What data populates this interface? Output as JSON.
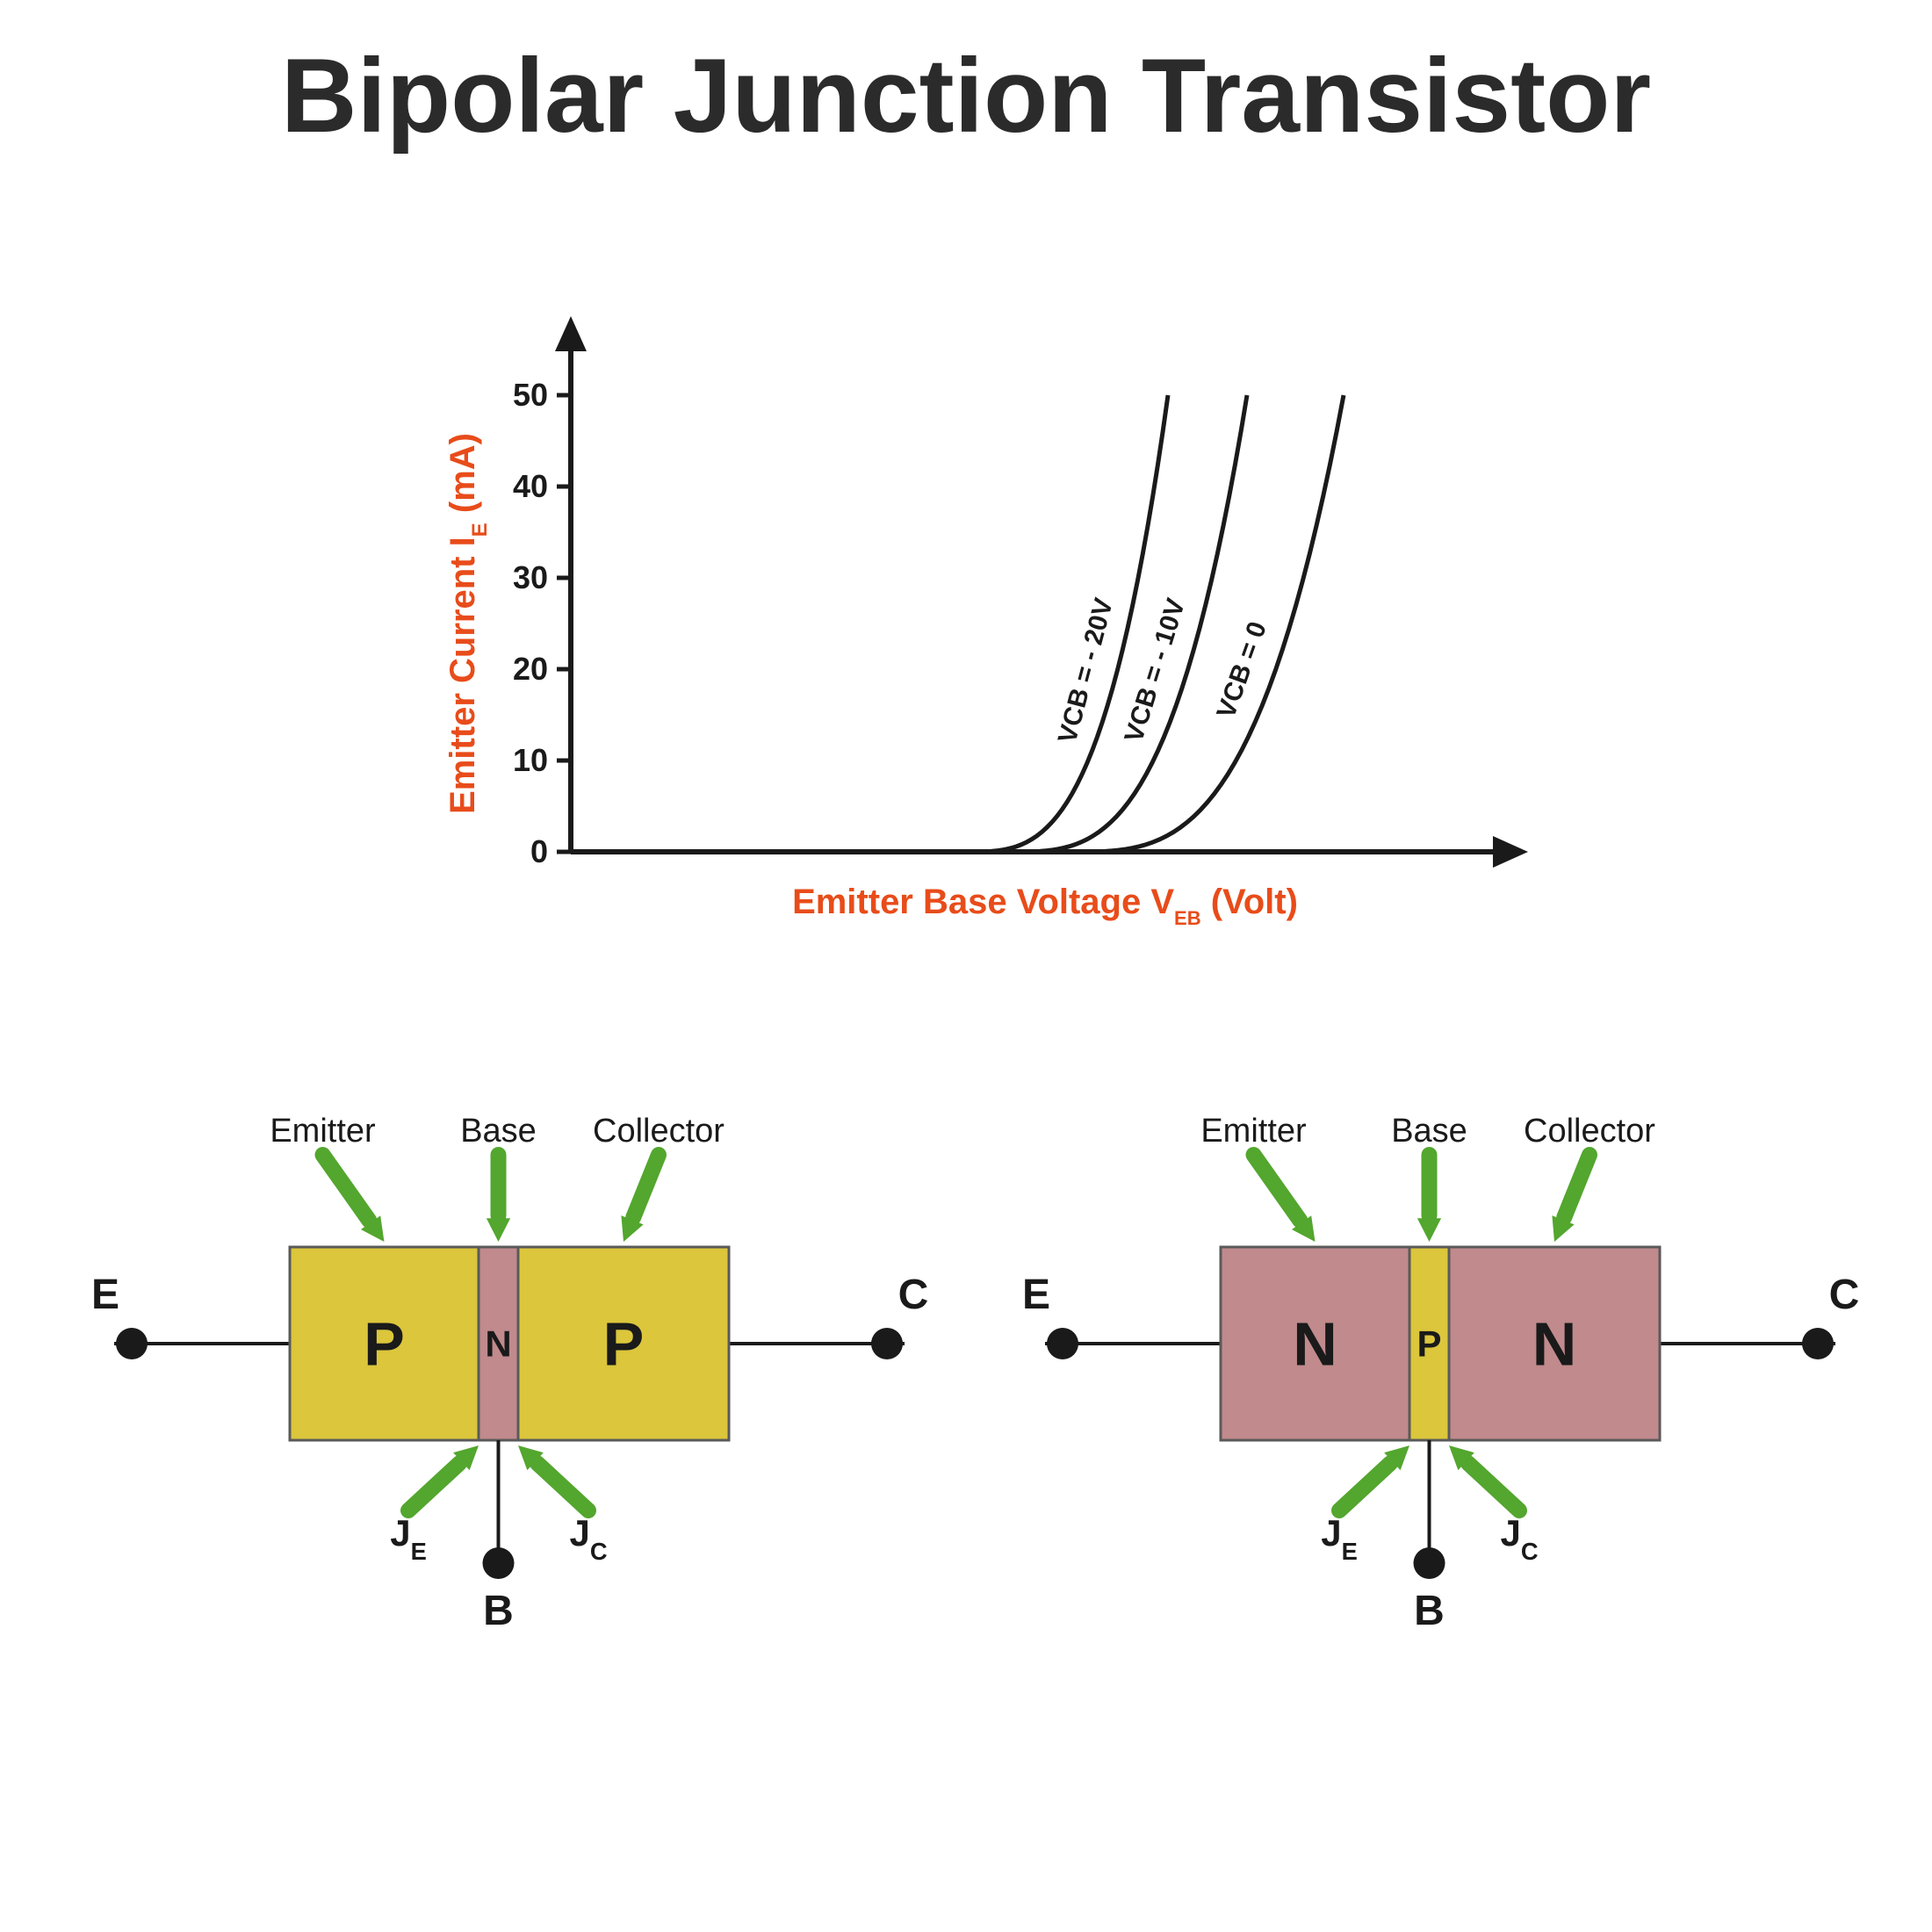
{
  "title": "Bipolar Junction Transistor",
  "chart": {
    "type": "line",
    "y_axis_label": "Emitter Current I",
    "y_axis_sub": "E",
    "y_axis_unit": "(mA)",
    "x_axis_label": "Emitter Base Voltage V",
    "x_axis_sub": "EB",
    "x_axis_unit": "(Volt)",
    "y_ticks": [
      0,
      10,
      20,
      30,
      40,
      50
    ],
    "x_range": [
      0,
      100
    ],
    "axis_label_color": "#e84c1a",
    "tick_color": "#1a1a1a",
    "line_color": "#1a1a1a",
    "axis_color": "#1a1a1a",
    "axis_stroke_width": 6,
    "curve_stroke_width": 5,
    "tick_fontsize": 36,
    "axis_label_fontsize": 40,
    "curves": [
      {
        "label": "VCB = - 20V",
        "x_start": 45,
        "x_end": 68
      },
      {
        "label": "VCB = - 10V",
        "x_start": 50,
        "x_end": 77
      },
      {
        "label": "VCB = 0",
        "x_start": 57,
        "x_end": 88
      }
    ]
  },
  "transistors": {
    "arrow_color": "#53a62e",
    "border_color": "#5a5a5a",
    "text_color": "#1a1a1a",
    "region_label_fontsize": 70,
    "region_small_fontsize": 42,
    "top_label_fontsize": 38,
    "terminal_fontsize": 48,
    "junction_fontsize": 42,
    "pnp": {
      "top_labels": [
        "Emitter",
        "Base",
        "Collector"
      ],
      "regions": [
        {
          "label": "P",
          "color": "#dbc63c",
          "width_pct": 43
        },
        {
          "label": "N",
          "color": "#c18a8d",
          "width_pct": 9,
          "small": true
        },
        {
          "label": "P",
          "color": "#dbc63c",
          "width_pct": 48
        }
      ],
      "terminals": {
        "left": "E",
        "right": "C",
        "bottom": "B"
      },
      "junctions": {
        "left": "J",
        "left_sub": "E",
        "right": "J",
        "right_sub": "C"
      }
    },
    "npn": {
      "top_labels": [
        "Emitter",
        "Base",
        "Collector"
      ],
      "regions": [
        {
          "label": "N",
          "color": "#c18a8d",
          "width_pct": 43
        },
        {
          "label": "P",
          "color": "#dbc63c",
          "width_pct": 9,
          "small": true
        },
        {
          "label": "N",
          "color": "#c18a8d",
          "width_pct": 48
        }
      ],
      "terminals": {
        "left": "E",
        "right": "C",
        "bottom": "B"
      },
      "junctions": {
        "left": "J",
        "left_sub": "E",
        "right": "J",
        "right_sub": "C"
      }
    }
  }
}
